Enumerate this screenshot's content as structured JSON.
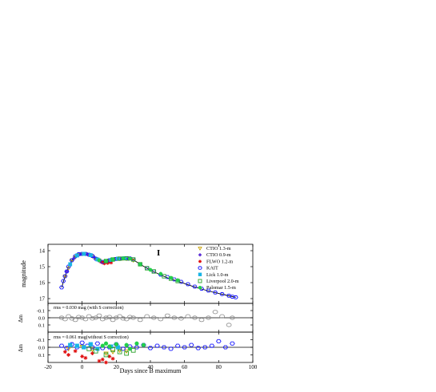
{
  "chart_data": [
    {
      "type": "scatter",
      "panel": "light-curve",
      "band_label": "I",
      "ylabel": "magnitude",
      "ylim": [
        17.3,
        13.6
      ],
      "yticks": [
        14,
        15,
        16,
        17
      ],
      "xlim": [
        -20,
        100
      ],
      "legend_position": "top-right",
      "series": [
        {
          "name": "CTIO 1.3-m",
          "marker": "triangle-down-open",
          "color": "#c8a000",
          "x": [
            -10,
            -8,
            -6,
            -4,
            -2,
            0,
            2,
            4,
            6,
            8,
            10,
            12,
            14,
            16,
            18,
            20,
            22,
            24,
            26,
            28,
            30
          ],
          "y": [
            15.6,
            15.1,
            14.6,
            14.4,
            14.25,
            14.2,
            14.2,
            14.25,
            14.35,
            14.5,
            14.6,
            14.7,
            14.65,
            14.6,
            14.55,
            14.5,
            14.5,
            14.5,
            14.5,
            14.5,
            14.6
          ]
        },
        {
          "name": "CTIO 0.9-m",
          "marker": "diamond-filled",
          "color": "#5a2bd6",
          "x": [
            -9,
            -5,
            -1,
            3,
            7,
            11,
            15,
            19,
            23,
            27
          ],
          "y": [
            15.3,
            14.5,
            14.22,
            14.22,
            14.4,
            14.68,
            14.62,
            14.52,
            14.5,
            14.52
          ]
        },
        {
          "name": "FLWO 1.2-m",
          "marker": "asterisk",
          "color": "#e01010",
          "x": [
            11,
            12,
            13,
            14,
            15,
            16,
            17
          ],
          "y": [
            14.7,
            14.75,
            14.8,
            14.72,
            14.78,
            14.7,
            14.75
          ]
        },
        {
          "name": "KAIT",
          "marker": "hexagon-open",
          "color": "#1a1aff",
          "x": [
            -12,
            -11,
            -10,
            -9,
            -8,
            -6,
            -4,
            -2,
            0,
            2,
            4,
            6,
            8,
            10,
            12,
            14,
            16,
            18,
            20,
            22,
            24,
            26,
            28,
            30,
            34,
            38,
            42,
            46,
            50,
            54,
            58,
            62,
            66,
            70,
            74,
            78,
            82,
            86,
            88,
            90
          ],
          "y": [
            16.3,
            15.9,
            15.6,
            15.3,
            15.0,
            14.6,
            14.35,
            14.22,
            14.2,
            14.2,
            14.25,
            14.33,
            14.5,
            14.6,
            14.7,
            14.66,
            14.6,
            14.55,
            14.52,
            14.5,
            14.48,
            14.47,
            14.48,
            14.55,
            14.85,
            15.1,
            15.3,
            15.5,
            15.65,
            15.8,
            15.95,
            16.1,
            16.25,
            16.38,
            16.5,
            16.62,
            16.72,
            16.82,
            16.88,
            16.92
          ]
        },
        {
          "name": "Lick 1.0-m",
          "marker": "square-filled",
          "color": "#18b4e6",
          "x": [
            -7,
            -3,
            1,
            5,
            9,
            17,
            21,
            25
          ],
          "y": [
            14.85,
            14.3,
            14.2,
            14.28,
            14.55,
            14.58,
            14.5,
            14.47
          ]
        },
        {
          "name": "Liverpool 2.0-m",
          "marker": "square-open",
          "color": "#2aa02a",
          "x": [
            14,
            18,
            22,
            26,
            30,
            34,
            38,
            42,
            48,
            52,
            56
          ],
          "y": [
            14.65,
            14.55,
            14.5,
            14.48,
            14.55,
            14.85,
            15.1,
            15.3,
            15.6,
            15.75,
            15.9
          ]
        },
        {
          "name": "Palomar 1.5-m",
          "marker": "circle-filled",
          "color": "#22d04a",
          "x": [
            10,
            14,
            18,
            24,
            28,
            34,
            40,
            46,
            52,
            56
          ],
          "y": [
            14.6,
            14.65,
            14.55,
            14.48,
            14.5,
            14.85,
            15.2,
            15.45,
            15.7,
            15.85
          ]
        }
      ],
      "model_curve": {
        "x": [
          -12,
          -10,
          -8,
          -6,
          -4,
          -2,
          0,
          2,
          4,
          6,
          8,
          10,
          12,
          14,
          16,
          18,
          20,
          22,
          24,
          26,
          28,
          30,
          34,
          38,
          42,
          46,
          50,
          55,
          60,
          65,
          70,
          75,
          80,
          85,
          90
        ],
        "y": [
          16.3,
          15.6,
          15.0,
          14.6,
          14.35,
          14.22,
          14.18,
          14.2,
          14.25,
          14.35,
          14.5,
          14.62,
          14.68,
          14.64,
          14.58,
          14.54,
          14.5,
          14.48,
          14.47,
          14.47,
          14.5,
          14.57,
          14.85,
          15.1,
          15.32,
          15.52,
          15.7,
          15.88,
          16.06,
          16.24,
          16.4,
          16.55,
          16.68,
          16.8,
          16.92
        ]
      }
    },
    {
      "type": "scatter",
      "panel": "residuals-with-s-correction",
      "annotation": "rms = 0.030 mag (with S correction)",
      "ylabel": "Δm",
      "ylim": [
        0.2,
        -0.2
      ],
      "yticks": [
        -0.1,
        0.0,
        0.1
      ],
      "ytick_labels": [
        "-0.1",
        "0.0",
        "0.1"
      ],
      "xlim": [
        -20,
        100
      ],
      "points_color": "#909090",
      "x": [
        -12,
        -10,
        -8,
        -6,
        -4,
        -2,
        0,
        2,
        4,
        6,
        8,
        10,
        12,
        14,
        16,
        18,
        20,
        22,
        24,
        26,
        28,
        30,
        34,
        38,
        42,
        46,
        50,
        54,
        58,
        62,
        66,
        70,
        74,
        78,
        82,
        86,
        88
      ],
      "y": [
        0.0,
        0.02,
        -0.02,
        0.01,
        0.03,
        -0.01,
        0.0,
        0.02,
        -0.02,
        0.01,
        0.0,
        -0.03,
        0.02,
        0.0,
        -0.01,
        0.03,
        0.0,
        -0.02,
        0.01,
        0.02,
        -0.01,
        0.0,
        0.03,
        -0.02,
        0.0,
        0.02,
        -0.03,
        0.0,
        0.01,
        -0.02,
        0.0,
        0.03,
        0.0,
        -0.08,
        -0.02,
        0.1,
        0.0
      ]
    },
    {
      "type": "scatter",
      "panel": "residuals-without-s-correction",
      "annotation": "rms = 0.061 mag(without S correction)",
      "ylabel": "Δm",
      "ylim": [
        0.2,
        -0.2
      ],
      "yticks": [
        -0.1,
        0.0,
        0.1
      ],
      "ytick_labels": [
        "-0.1",
        "0.0",
        "0.1"
      ],
      "xlim": [
        -20,
        100
      ],
      "xlabel": "Days since B maximum",
      "xticks": [
        -20,
        0,
        20,
        40,
        60,
        80,
        100
      ],
      "series": [
        {
          "name": "CTIO 1.3-m",
          "x": [
            -8,
            0,
            6,
            14,
            18,
            22,
            26
          ],
          "y": [
            0.02,
            -0.01,
            0.03,
            0.08,
            0.06,
            0.04,
            0.05
          ]
        },
        {
          "name": "FLWO 1.2-m",
          "x": [
            -10,
            -8,
            -4,
            0,
            2,
            6,
            10,
            12,
            14,
            16,
            18
          ],
          "y": [
            0.06,
            0.1,
            0.05,
            0.12,
            0.14,
            0.08,
            0.18,
            0.16,
            0.2,
            0.12,
            0.15
          ]
        },
        {
          "name": "KAIT",
          "x": [
            -12,
            -9,
            -6,
            -3,
            0,
            3,
            6,
            9,
            12,
            16,
            20,
            24,
            28,
            32,
            36,
            40,
            44,
            48,
            52,
            56,
            60,
            64,
            68,
            72,
            76,
            80,
            84,
            88
          ],
          "y": [
            -0.02,
            0.01,
            -0.04,
            0.0,
            -0.06,
            -0.02,
            0.0,
            -0.05,
            0.01,
            0.0,
            -0.04,
            0.02,
            -0.01,
            0.0,
            -0.03,
            0.01,
            -0.02,
            0.0,
            0.02,
            -0.02,
            0.0,
            -0.03,
            0.01,
            0.0,
            -0.02,
            -0.08,
            0.0,
            -0.05
          ]
        },
        {
          "name": "Lick 1.0-m",
          "x": [
            -7,
            -3,
            1,
            5,
            9,
            17,
            21
          ],
          "y": [
            -0.03,
            -0.02,
            0.0,
            -0.04,
            0.02,
            -0.01,
            0.0
          ]
        },
        {
          "name": "Liverpool 2.0-m",
          "x": [
            4,
            8,
            14,
            18,
            22,
            26,
            30
          ],
          "y": [
            0.02,
            0.05,
            0.1,
            0.03,
            0.06,
            0.08,
            0.04
          ]
        },
        {
          "name": "Palomar 1.5-m",
          "x": [
            12,
            14,
            16,
            20,
            26,
            28,
            32,
            36
          ],
          "y": [
            -0.02,
            -0.05,
            -0.01,
            -0.04,
            -0.03,
            0.02,
            -0.05,
            -0.03
          ]
        }
      ]
    }
  ]
}
